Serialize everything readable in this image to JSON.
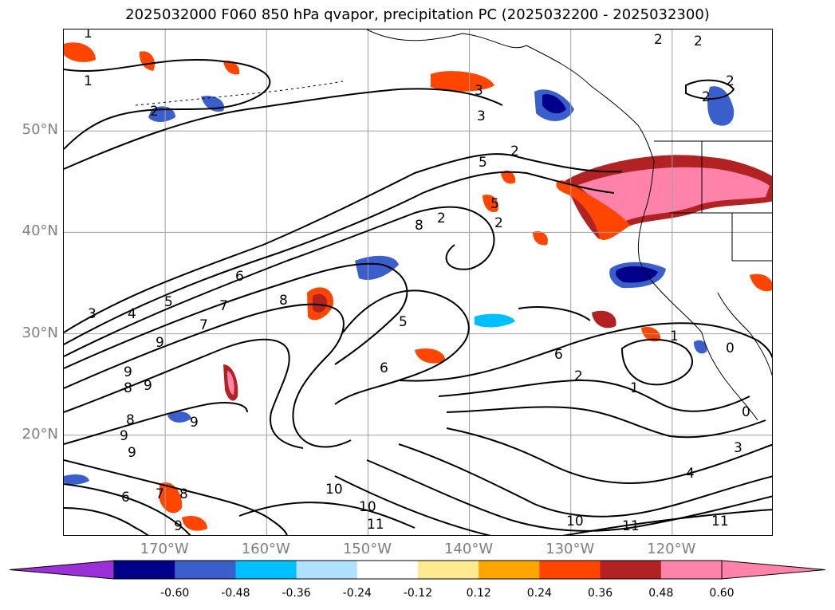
{
  "title": "2025032000 F060 850 hPa qvapor, precipitation PC (2025032200 - 2025032300)",
  "map": {
    "lat_labels": [
      {
        "text": "50°N",
        "lat": 50
      },
      {
        "text": "40°N",
        "lat": 40
      },
      {
        "text": "30°N",
        "lat": 30
      },
      {
        "text": "20°N",
        "lat": 20
      }
    ],
    "lon_labels": [
      {
        "text": "170°W",
        "lon": -170
      },
      {
        "text": "160°W",
        "lon": -160
      },
      {
        "text": "150°W",
        "lon": -150
      },
      {
        "text": "140°W",
        "lon": -140
      },
      {
        "text": "130°W",
        "lon": -130
      },
      {
        "text": "120°W",
        "lon": -120
      }
    ],
    "extent": {
      "lon_min": -180,
      "lon_max": -110,
      "lat_min": 10,
      "lat_max": 60
    },
    "grid_color": "#a0a0a0",
    "contour_labels": [
      "1",
      "1",
      "2",
      "2",
      "2",
      "3",
      "3",
      "2",
      "2",
      "2",
      "3",
      "4",
      "5",
      "5",
      "8",
      "6",
      "7",
      "7",
      "8",
      "9",
      "9",
      "8",
      "9",
      "9",
      "8",
      "9",
      "6",
      "5",
      "6",
      "2",
      "1",
      "1",
      "0",
      "0",
      "3",
      "4",
      "11",
      "10",
      "10",
      "11",
      "10",
      "11",
      "6",
      "7",
      "8",
      "9",
      "9",
      "5",
      "2",
      "2"
    ]
  },
  "colorbar": {
    "levels": [
      "-0.60",
      "-0.48",
      "-0.36",
      "-0.24",
      "-0.12",
      "0.12",
      "0.24",
      "0.36",
      "0.48",
      "0.60"
    ],
    "colors": [
      "#9b30d9",
      "#00008b",
      "#3a5fcd",
      "#00bfff",
      "#b0e2ff",
      "#ffffff",
      "#ffe991",
      "#ffa500",
      "#ff4500",
      "#b22222",
      "#ff82ab"
    ]
  }
}
